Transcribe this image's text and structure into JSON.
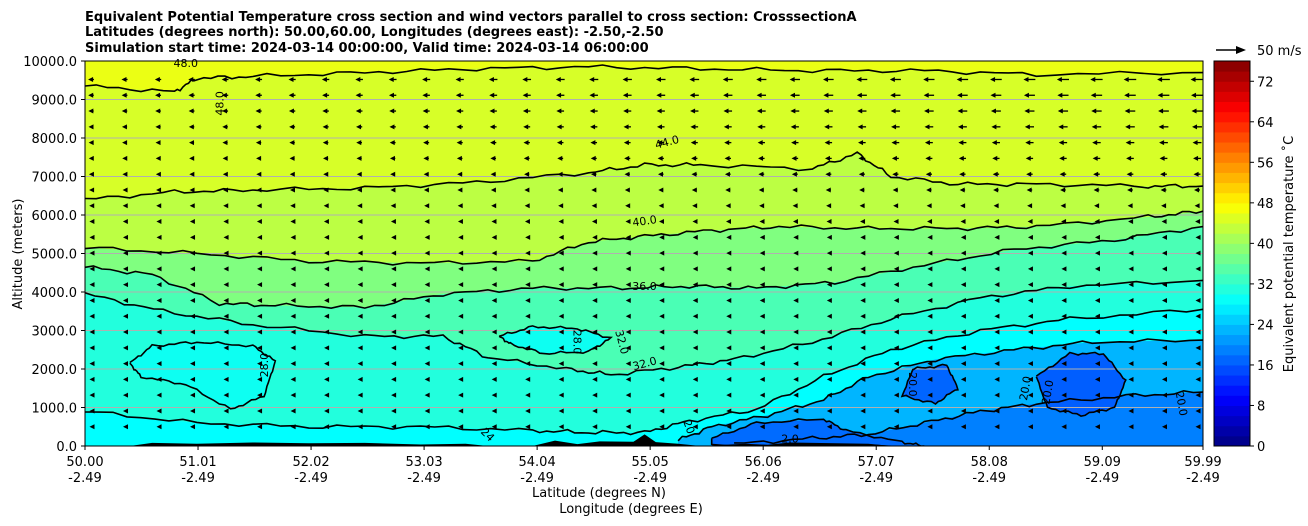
{
  "chart_data": {
    "type": "heatmap",
    "title_lines": [
      "Equivalent Potential Temperature cross section and wind vectors parallel to cross section: CrosssectionA",
      "Latitudes (degrees north): 50.00,60.00, Longitudes (degrees east): -2.50,-2.50",
      "Simulation start time: 2024-03-14 00:00:00, Valid time: 2024-03-14 06:00:00"
    ],
    "ylabel": "Altitude (meters)",
    "xlabel_1": "Latitude (degrees N)",
    "xlabel_2": "Longitude (degrees E)",
    "ylim": [
      0,
      10000
    ],
    "y_ticks": [
      "0.0",
      "1000.0",
      "2000.0",
      "3000.0",
      "4000.0",
      "5000.0",
      "6000.0",
      "7000.0",
      "8000.0",
      "9000.0",
      "10000.0"
    ],
    "x_ticks_lat": [
      "50.00",
      "51.01",
      "52.02",
      "53.03",
      "54.04",
      "55.05",
      "56.06",
      "57.07",
      "58.08",
      "59.09",
      "59.99"
    ],
    "x_ticks_lon": [
      "-2.49",
      "-2.49",
      "-2.49",
      "-2.49",
      "-2.49",
      "-2.49",
      "-2.49",
      "-2.49",
      "-2.49",
      "-2.49",
      "-2.49"
    ],
    "colorbar_label": "Equivalent potential temperature ˚C",
    "colorbar_range": [
      0,
      76
    ],
    "colorbar_ticks": [
      "0",
      "8",
      "16",
      "24",
      "32",
      "40",
      "48",
      "56",
      "64",
      "72"
    ],
    "quiver_key_label": "50 m/s",
    "contour_labels": [
      {
        "text": "48.0",
        "lat": 51.2,
        "alt": 8900,
        "rot": -90
      },
      {
        "text": "48.0",
        "lat": 50.9,
        "alt": 9950,
        "rot": 0
      },
      {
        "text": "44.0",
        "lat": 55.2,
        "alt": 7900,
        "rot": -15
      },
      {
        "text": "40.0",
        "lat": 55.0,
        "alt": 5850,
        "rot": -8
      },
      {
        "text": "36.0",
        "lat": 55.0,
        "alt": 4150,
        "rot": 0
      },
      {
        "text": "32.0",
        "lat": 55.0,
        "alt": 2150,
        "rot": -15
      },
      {
        "text": "32.0",
        "lat": 54.8,
        "alt": 2700,
        "rot": 75
      },
      {
        "text": "28.0",
        "lat": 54.4,
        "alt": 2700,
        "rot": 90
      },
      {
        "text": "28.0",
        "lat": 51.6,
        "alt": 2100,
        "rot": -90
      },
      {
        "text": "20.0",
        "lat": 57.4,
        "alt": 1600,
        "rot": 90
      },
      {
        "text": "20.0",
        "lat": 58.4,
        "alt": 1500,
        "rot": -80
      },
      {
        "text": "20.0",
        "lat": 58.6,
        "alt": 1400,
        "rot": -80
      },
      {
        "text": "20.0",
        "lat": 59.8,
        "alt": 1100,
        "rot": 80
      },
      {
        "text": "24",
        "lat": 53.6,
        "alt": 300,
        "rot": 45
      },
      {
        "text": "20",
        "lat": 55.4,
        "alt": 500,
        "rot": 70
      },
      {
        "text": "2.0",
        "lat": 56.3,
        "alt": 200,
        "rot": 0
      }
    ],
    "colors": {
      "terrain": "#000000",
      "contour": "#000000",
      "grid": "#b0b0b0"
    }
  }
}
